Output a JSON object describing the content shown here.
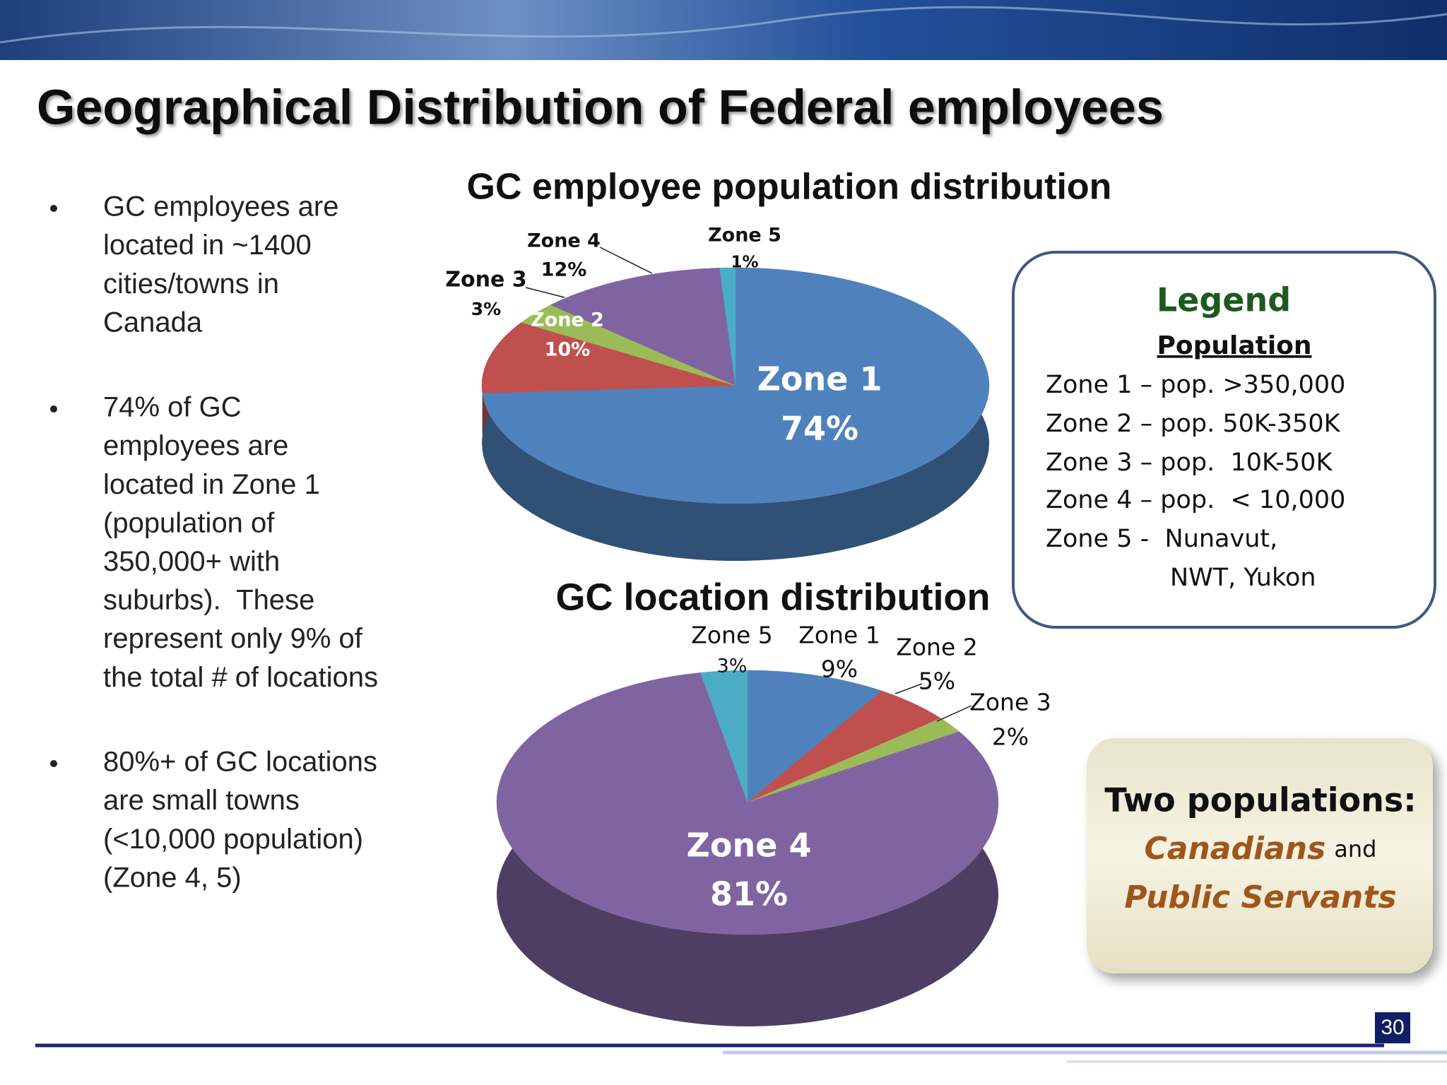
{
  "header": {
    "title": "Geographical Distribution of Federal employees"
  },
  "bullets": [
    {
      "lines": [
        "GC employees are",
        "located in ~1400",
        "cities/towns in",
        "Canada"
      ]
    },
    {
      "lines": [
        "74% of GC",
        "employees are",
        "located in Zone 1",
        "(population of",
        "350,000+ with",
        "suburbs).  These",
        "represent only 9% of",
        "the total # of locations"
      ]
    },
    {
      "lines": [
        "80%+ of GC locations",
        "are small towns",
        "(<10,000 population)",
        "(Zone 4, 5)"
      ]
    }
  ],
  "chart_data": [
    {
      "type": "pie",
      "title": "GC employee population distribution",
      "categories": [
        "Zone 1",
        "Zone 2",
        "Zone 3",
        "Zone 4",
        "Zone 5"
      ],
      "values": [
        74,
        10,
        3,
        12,
        1
      ],
      "value_labels": [
        "74%",
        "10%",
        "3%",
        "12%",
        "1%"
      ],
      "colors": [
        "#4f81bd",
        "#c0504d",
        "#9bbb59",
        "#8064a2",
        "#4bacc6"
      ]
    },
    {
      "type": "pie",
      "title": "GC location distribution",
      "categories": [
        "Zone 1",
        "Zone 2",
        "Zone 3",
        "Zone 4",
        "Zone 5"
      ],
      "values": [
        9,
        5,
        2,
        81,
        3
      ],
      "value_labels": [
        "9%",
        "5%",
        "2%",
        "81%",
        "3%"
      ],
      "colors": [
        "#4f81bd",
        "#c0504d",
        "#9bbb59",
        "#8064a2",
        "#4bacc6"
      ]
    }
  ],
  "legend_box": {
    "title": "Legend",
    "subtitle": "Population",
    "lines": [
      "Zone 1 – pop. >350,000",
      "Zone 2 – pop. 50K-350K",
      "Zone 3 – pop.  10K-50K",
      "Zone 4 – pop.  < 10,000",
      "Zone 5 -  Nunavut,",
      "NWT, Yukon"
    ]
  },
  "callout": {
    "line1": "Two populations:",
    "em1": "Canadians",
    "and": "and",
    "em2": "Public Servants"
  },
  "page_number": "30"
}
